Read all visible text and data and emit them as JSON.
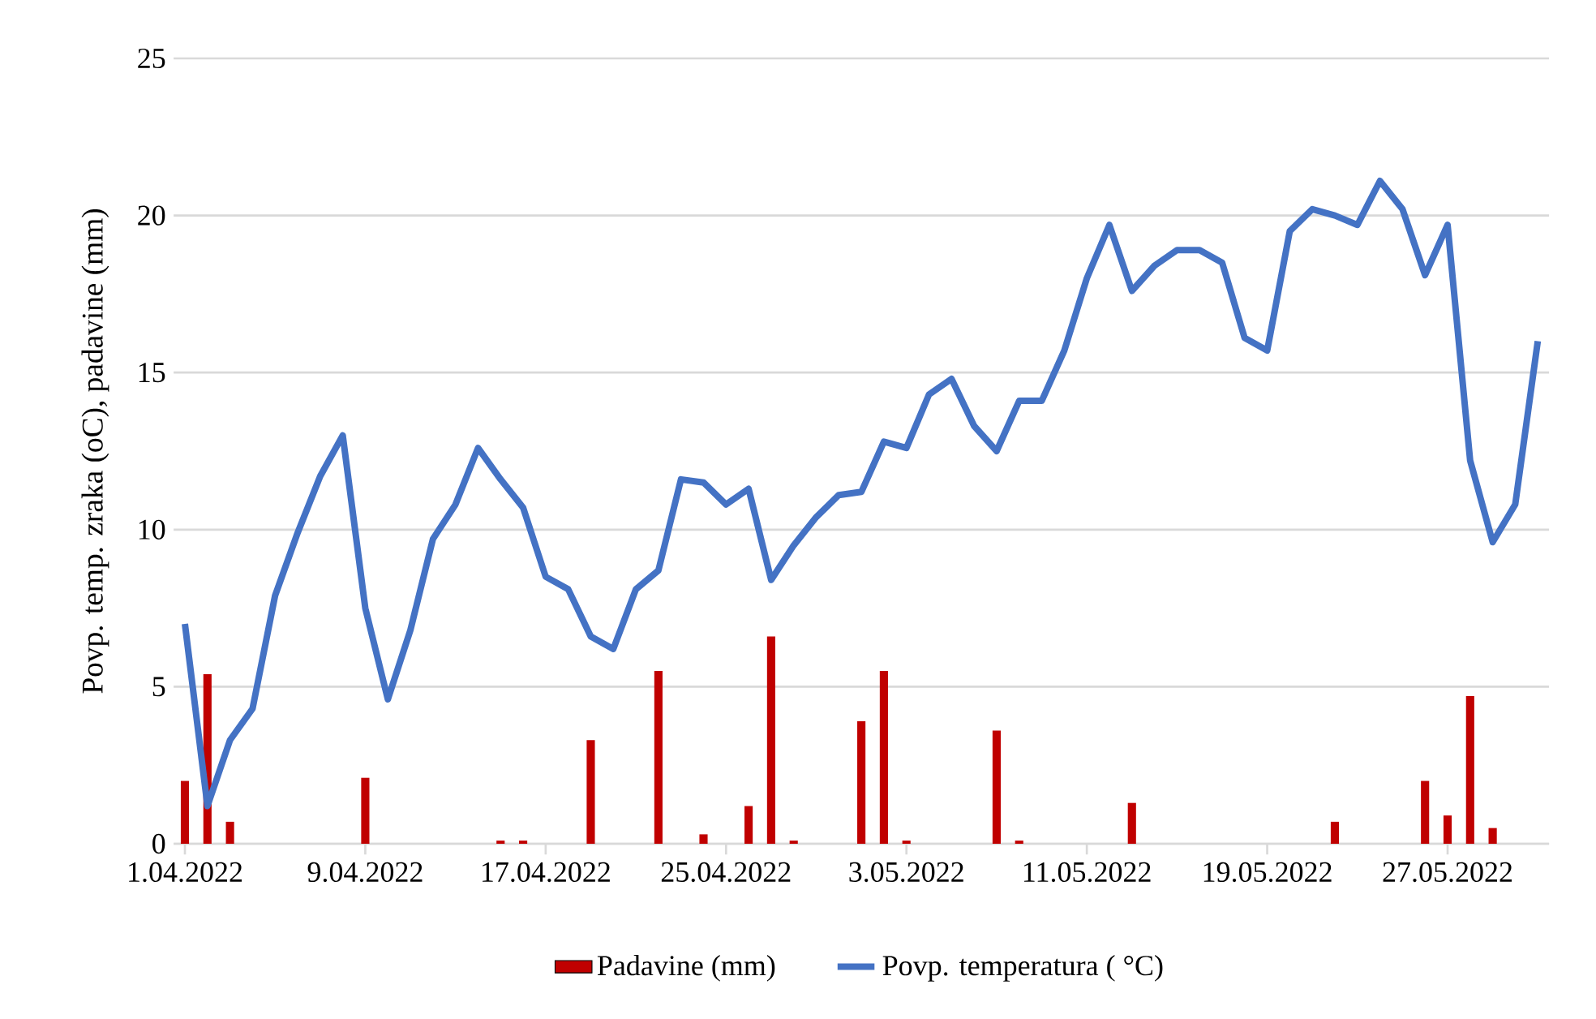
{
  "chart_data": {
    "type": "bar",
    "categories": [
      "1.04.2022",
      null,
      null,
      null,
      null,
      null,
      null,
      null,
      "9.04.2022",
      null,
      null,
      null,
      null,
      null,
      null,
      null,
      "17.04.2022",
      null,
      null,
      null,
      null,
      null,
      null,
      null,
      "25.04.2022",
      null,
      null,
      null,
      null,
      null,
      null,
      null,
      "3.05.2022",
      null,
      null,
      null,
      null,
      null,
      null,
      null,
      "11.05.2022",
      null,
      null,
      null,
      null,
      null,
      null,
      null,
      "19.05.2022",
      null,
      null,
      null,
      null,
      null,
      null,
      null,
      "27.05.2022",
      null,
      null,
      null,
      null
    ],
    "ylabel": "Povp. temp. zraka (oC), padavine (mm)",
    "ylim": [
      0,
      25
    ],
    "yticks": [
      0,
      5,
      10,
      15,
      20,
      25
    ],
    "grid": "y",
    "legend": "bottom",
    "marker": "none",
    "series": [
      {
        "name": "Padavine (mm)",
        "color": "#c00000",
        "values": [
          2.0,
          5.4,
          0.7,
          0,
          0,
          0,
          0,
          0,
          2.1,
          0,
          0,
          0,
          0,
          0,
          0.1,
          0.1,
          0,
          0,
          3.3,
          0,
          0,
          5.5,
          0,
          0.3,
          0,
          1.2,
          6.6,
          0.1,
          0,
          0,
          3.9,
          5.5,
          0.1,
          0,
          0,
          0,
          3.6,
          0.1,
          0,
          0,
          0,
          0,
          1.3,
          0,
          0,
          0,
          0,
          0,
          0,
          0,
          0,
          0.7,
          0,
          0,
          0,
          2.0,
          0.9,
          4.7,
          0.5,
          0,
          0
        ]
      },
      {
        "name": "Povp. temperatura ( °C)",
        "type": "line",
        "color": "#4472c4",
        "line_style": "solid",
        "values": [
          7.0,
          1.2,
          3.3,
          4.3,
          7.9,
          9.9,
          11.7,
          13.0,
          7.5,
          4.6,
          6.8,
          9.7,
          10.8,
          12.6,
          11.6,
          10.7,
          8.5,
          8.1,
          6.6,
          6.2,
          8.1,
          8.7,
          11.6,
          11.5,
          10.8,
          11.3,
          8.4,
          9.5,
          10.4,
          11.1,
          11.2,
          12.8,
          12.6,
          14.3,
          14.8,
          13.3,
          12.5,
          14.1,
          14.1,
          15.7,
          18.0,
          19.7,
          17.6,
          18.4,
          18.9,
          18.9,
          18.5,
          16.1,
          15.7,
          19.5,
          20.2,
          20.0,
          19.7,
          21.1,
          20.2,
          18.1,
          19.7,
          12.2,
          9.6,
          10.8,
          16.0
        ]
      }
    ]
  }
}
